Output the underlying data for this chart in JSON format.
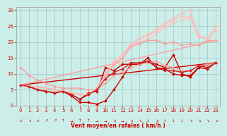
{
  "title": "",
  "xlabel": "Vent moyen/en rafales ( km/h )",
  "bg_color": "#cceee8",
  "grid_color": "#aacccc",
  "xlim": [
    -0.5,
    23.5
  ],
  "ylim": [
    0,
    31
  ],
  "xticks": [
    0,
    1,
    2,
    3,
    4,
    5,
    6,
    7,
    8,
    9,
    10,
    11,
    12,
    13,
    14,
    15,
    16,
    17,
    18,
    19,
    20,
    21,
    22,
    23
  ],
  "yticks": [
    0,
    5,
    10,
    15,
    20,
    25,
    30
  ],
  "tick_color": "#cc0000",
  "label_color": "#cc0000",
  "lines": [
    {
      "comment": "straight diagonal line (no markers, dark red)",
      "x": [
        0,
        23
      ],
      "y": [
        6.5,
        13.5
      ],
      "color": "#cc0000",
      "lw": 1.0,
      "marker": null,
      "alpha": 1.0,
      "zorder": 2
    },
    {
      "comment": "dark red zigzag line 1 with markers",
      "x": [
        0,
        1,
        2,
        3,
        4,
        5,
        6,
        7,
        8,
        9,
        10,
        11,
        12,
        13,
        14,
        15,
        16,
        17,
        18,
        19,
        20,
        21,
        22,
        23
      ],
      "y": [
        6.5,
        6.0,
        5.0,
        4.5,
        4.0,
        4.5,
        3.0,
        1.0,
        1.0,
        0.5,
        1.5,
        5.0,
        9.0,
        13.0,
        13.0,
        14.0,
        13.0,
        12.0,
        16.0,
        10.0,
        9.0,
        12.0,
        13.0,
        13.5
      ],
      "color": "#cc0000",
      "lw": 1.0,
      "marker": "D",
      "ms": 2.0,
      "alpha": 1.0,
      "zorder": 3
    },
    {
      "comment": "dark red zigzag line 2 with markers",
      "x": [
        0,
        1,
        2,
        3,
        4,
        5,
        6,
        7,
        8,
        9,
        10,
        11,
        12,
        13,
        14,
        15,
        16,
        17,
        18,
        19,
        20,
        21,
        22,
        23
      ],
      "y": [
        6.5,
        6.0,
        5.0,
        4.5,
        4.0,
        4.5,
        3.5,
        2.0,
        4.0,
        4.5,
        12.0,
        11.0,
        13.0,
        13.0,
        13.0,
        15.0,
        12.0,
        11.5,
        10.0,
        9.5,
        9.5,
        12.0,
        11.5,
        13.5
      ],
      "color": "#cc0000",
      "lw": 1.0,
      "marker": "D",
      "ms": 2.0,
      "alpha": 1.0,
      "zorder": 3
    },
    {
      "comment": "medium pink line - upper diagonal straight",
      "x": [
        0,
        23
      ],
      "y": [
        6.5,
        20.5
      ],
      "color": "#ff9999",
      "lw": 1.0,
      "marker": null,
      "alpha": 0.9,
      "zorder": 2
    },
    {
      "comment": "medium pink with markers - goes high",
      "x": [
        0,
        1,
        2,
        3,
        4,
        5,
        6,
        7,
        8,
        9,
        10,
        11,
        12,
        13,
        14,
        15,
        16,
        17,
        18,
        19,
        20,
        21,
        22,
        23
      ],
      "y": [
        6.5,
        6.0,
        6.0,
        5.5,
        5.0,
        4.5,
        4.0,
        3.5,
        3.5,
        5.5,
        9.5,
        13.0,
        15.0,
        18.5,
        19.5,
        20.5,
        20.5,
        19.5,
        20.0,
        19.0,
        19.5,
        19.0,
        20.5,
        20.5
      ],
      "color": "#ff9999",
      "lw": 1.0,
      "marker": "D",
      "ms": 2.0,
      "alpha": 0.9,
      "zorder": 3
    },
    {
      "comment": "lighter pink line upper zigzag with markers peak ~30",
      "x": [
        0,
        1,
        2,
        3,
        4,
        5,
        6,
        7,
        8,
        9,
        10,
        11,
        12,
        13,
        14,
        15,
        16,
        17,
        18,
        19,
        20,
        21,
        22,
        23
      ],
      "y": [
        6.5,
        6.0,
        6.0,
        5.5,
        5.0,
        4.5,
        4.0,
        3.5,
        3.5,
        5.5,
        10.0,
        14.0,
        16.0,
        19.5,
        21.0,
        22.5,
        24.0,
        26.0,
        27.5,
        29.0,
        30.0,
        22.0,
        21.0,
        25.0
      ],
      "color": "#ffbbbb",
      "lw": 1.2,
      "marker": "D",
      "ms": 2.0,
      "alpha": 0.75,
      "zorder": 3
    },
    {
      "comment": "lighter pink line upper zigzag 2 with markers peak ~28",
      "x": [
        0,
        1,
        2,
        3,
        4,
        5,
        6,
        7,
        8,
        9,
        10,
        11,
        12,
        13,
        14,
        15,
        16,
        17,
        18,
        19,
        20,
        21,
        22,
        23
      ],
      "y": [
        6.5,
        6.0,
        6.0,
        5.5,
        5.0,
        4.5,
        4.0,
        3.5,
        3.5,
        5.5,
        9.5,
        13.5,
        16.0,
        19.0,
        21.0,
        22.0,
        23.5,
        25.5,
        27.0,
        28.0,
        28.0,
        22.0,
        21.0,
        24.0
      ],
      "color": "#ffbbbb",
      "lw": 1.2,
      "marker": "D",
      "ms": 2.0,
      "alpha": 0.75,
      "zorder": 3
    },
    {
      "comment": "lighter pink line upper 3 - slightly lower",
      "x": [
        0,
        1,
        2,
        3,
        4,
        5,
        6,
        7,
        8,
        9,
        10,
        11,
        12,
        13,
        14,
        15,
        16,
        17,
        18,
        19,
        20,
        21,
        22,
        23
      ],
      "y": [
        6.5,
        6.0,
        6.0,
        5.5,
        5.0,
        4.5,
        4.0,
        3.5,
        3.5,
        5.5,
        9.0,
        13.0,
        15.0,
        18.5,
        20.0,
        21.0,
        22.5,
        24.5,
        26.0,
        27.0,
        27.5,
        21.5,
        21.0,
        23.5
      ],
      "color": "#ffbbbb",
      "lw": 1.2,
      "marker": "D",
      "ms": 2.0,
      "alpha": 0.65,
      "zorder": 2
    },
    {
      "comment": "medium-light pink starting at 12, going to 13 with wiggles",
      "x": [
        0,
        1,
        2,
        3,
        4,
        5,
        6,
        7,
        8,
        9,
        10,
        11,
        12,
        13,
        14,
        15,
        16,
        17,
        18,
        19,
        20,
        21,
        22,
        23
      ],
      "y": [
        12.0,
        9.5,
        8.0,
        7.0,
        6.0,
        5.5,
        5.5,
        5.5,
        5.0,
        5.0,
        7.0,
        9.5,
        10.5,
        12.0,
        13.0,
        13.5,
        14.0,
        12.5,
        12.0,
        11.0,
        11.0,
        12.5,
        13.0,
        13.5
      ],
      "color": "#ff9999",
      "lw": 1.0,
      "marker": "D",
      "ms": 2.0,
      "alpha": 0.85,
      "zorder": 3
    },
    {
      "comment": "dark red small zigzag around 5-15 range",
      "x": [
        0,
        1,
        2,
        3,
        4,
        5,
        6,
        7,
        8,
        9,
        10,
        11,
        12,
        13,
        14,
        15,
        16,
        17,
        18,
        19,
        20,
        21,
        22,
        23
      ],
      "y": [
        6.5,
        6.0,
        5.0,
        4.5,
        4.0,
        4.5,
        3.5,
        2.0,
        3.5,
        5.0,
        8.5,
        10.5,
        11.5,
        13.5,
        13.5,
        14.0,
        12.0,
        11.0,
        11.0,
        10.5,
        11.0,
        12.5,
        12.0,
        13.5
      ],
      "color": "#cc2222",
      "lw": 1.0,
      "marker": "D",
      "ms": 2.0,
      "alpha": 1.0,
      "zorder": 3
    }
  ],
  "wind_arrows": {
    "x": [
      0,
      1,
      2,
      3,
      4,
      5,
      6,
      7,
      8,
      9,
      10,
      11,
      12,
      13,
      14,
      15,
      16,
      17,
      18,
      19,
      20,
      21,
      22,
      23
    ],
    "chars": [
      "↙",
      "↘",
      "↙",
      "↗",
      "↗",
      "↑",
      "→",
      "↑",
      "↑",
      "→",
      "→",
      "↘",
      "→",
      "↘",
      "↘",
      "↓",
      "↘",
      "↓",
      "↓",
      "↓",
      "↘",
      "↘",
      "↘",
      "↘"
    ],
    "color": "#cc0000"
  }
}
